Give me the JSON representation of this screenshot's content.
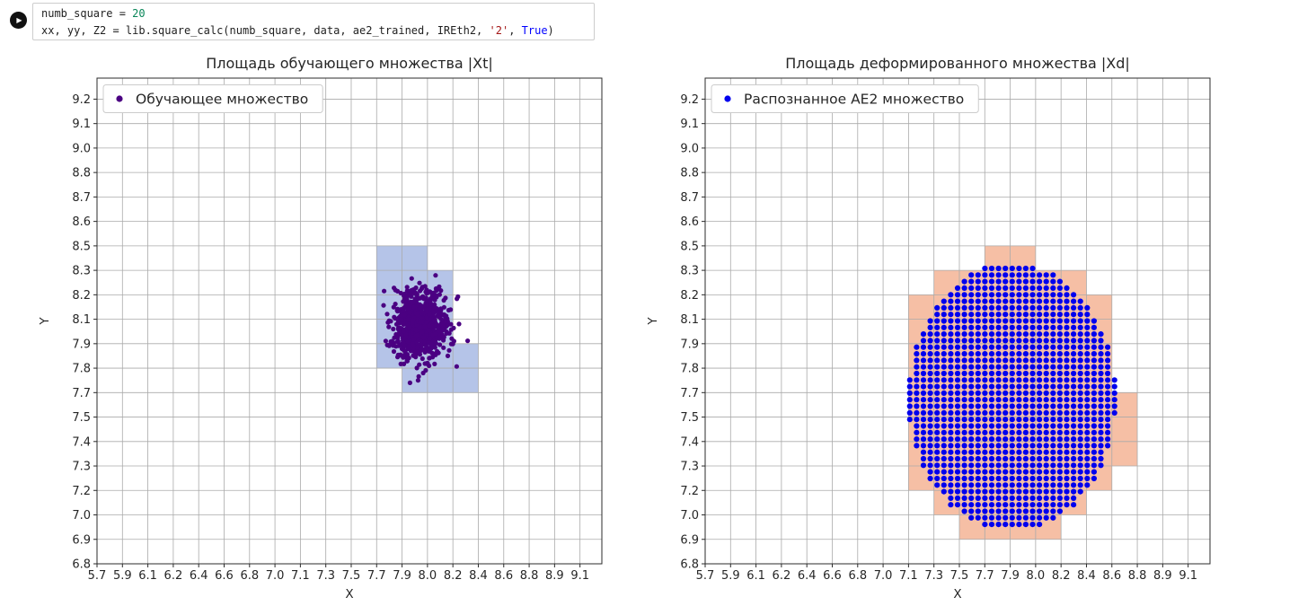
{
  "code_cell": {
    "run_label": "▶",
    "more_label": "⋯",
    "lines": [
      [
        {
          "text": "numb_square = ",
          "type": "plain"
        },
        {
          "text": "20",
          "type": "number"
        }
      ],
      [
        {
          "text": "xx, yy, Z2 = lib.square_calc(numb_square, data, ae2_trained, IREth2, ",
          "type": "plain"
        },
        {
          "text": "'2'",
          "type": "string"
        },
        {
          "text": ", ",
          "type": "plain"
        },
        {
          "text": "True",
          "type": "keyword"
        },
        {
          "text": ")",
          "type": "plain"
        }
      ]
    ]
  },
  "chart_data": [
    {
      "type": "scatter",
      "title": "Площадь обучающего множества |Xt|",
      "xlabel": "X",
      "ylabel": "Y",
      "grid": true,
      "x_ticks": [
        "5.7",
        "5.9",
        "6.1",
        "6.2",
        "6.4",
        "6.6",
        "6.8",
        "7.0",
        "7.1",
        "7.3",
        "7.5",
        "7.7",
        "7.9",
        "8.0",
        "8.2",
        "8.4",
        "8.6",
        "8.8",
        "8.9",
        "9.1"
      ],
      "y_ticks": [
        "6.8",
        "6.9",
        "7.0",
        "7.2",
        "7.3",
        "7.4",
        "7.5",
        "7.7",
        "7.8",
        "7.9",
        "8.1",
        "8.2",
        "8.3",
        "8.5",
        "8.6",
        "8.7",
        "8.8",
        "9.0",
        "9.1",
        "9.2"
      ],
      "legend": {
        "label": "Обучающее множество",
        "marker_color": "#4b0082",
        "position": "upper left"
      },
      "highlight_cells": {
        "color": "#b5c4e8",
        "rows": [
          {
            "row": 12,
            "c0": 11,
            "c1": 12
          },
          {
            "row": 11,
            "c0": 11,
            "c1": 13
          },
          {
            "row": 10,
            "c0": 11,
            "c1": 13
          },
          {
            "row": 9,
            "c0": 11,
            "c1": 13
          },
          {
            "row": 8,
            "c0": 11,
            "c1": 14
          },
          {
            "row": 7,
            "c0": 12,
            "c1": 14
          }
        ]
      },
      "cluster": {
        "center": [
          7.97,
          8.03
        ],
        "std": [
          0.1,
          0.09
        ],
        "n": 800,
        "seed": 42,
        "color": "#4b0082",
        "point_radius": 2.6
      }
    },
    {
      "type": "scatter",
      "title": "Площадь деформированного множества |Xd|",
      "xlabel": "X",
      "ylabel": "Y",
      "grid": true,
      "x_ticks": [
        "5.7",
        "5.9",
        "6.1",
        "6.2",
        "6.4",
        "6.6",
        "6.8",
        "7.0",
        "7.1",
        "7.3",
        "7.5",
        "7.7",
        "7.9",
        "8.0",
        "8.2",
        "8.4",
        "8.6",
        "8.8",
        "8.9",
        "9.1"
      ],
      "y_ticks": [
        "6.8",
        "6.9",
        "7.0",
        "7.2",
        "7.3",
        "7.4",
        "7.5",
        "7.7",
        "7.8",
        "7.9",
        "8.1",
        "8.2",
        "8.3",
        "8.5",
        "8.6",
        "8.7",
        "8.8",
        "9.0",
        "9.1",
        "9.2"
      ],
      "legend": {
        "label": "Распознанное AE2 множество",
        "marker_color": "#0000ee",
        "position": "upper left"
      },
      "highlight_cells": {
        "color": "#f6bfa5",
        "rows": [
          {
            "row": 12,
            "c0": 11,
            "c1": 12
          },
          {
            "row": 11,
            "c0": 9,
            "c1": 14
          },
          {
            "row": 10,
            "c0": 8,
            "c1": 15
          },
          {
            "row": 9,
            "c0": 8,
            "c1": 15
          },
          {
            "row": 8,
            "c0": 8,
            "c1": 15
          },
          {
            "row": 7,
            "c0": 8,
            "c1": 15
          },
          {
            "row": 6,
            "c0": 8,
            "c1": 16
          },
          {
            "row": 5,
            "c0": 8,
            "c1": 16
          },
          {
            "row": 4,
            "c0": 8,
            "c1": 16
          },
          {
            "row": 3,
            "c0": 8,
            "c1": 15
          },
          {
            "row": 2,
            "c0": 9,
            "c1": 14
          },
          {
            "row": 1,
            "c0": 10,
            "c1": 13
          }
        ]
      },
      "recognized_region": {
        "shape": "ellipse",
        "center": [
          7.86,
          7.66
        ],
        "rx": 0.73,
        "ry": 0.69,
        "grid_n": 74,
        "color": "#0000ee",
        "point_radius": 3.1
      }
    }
  ]
}
